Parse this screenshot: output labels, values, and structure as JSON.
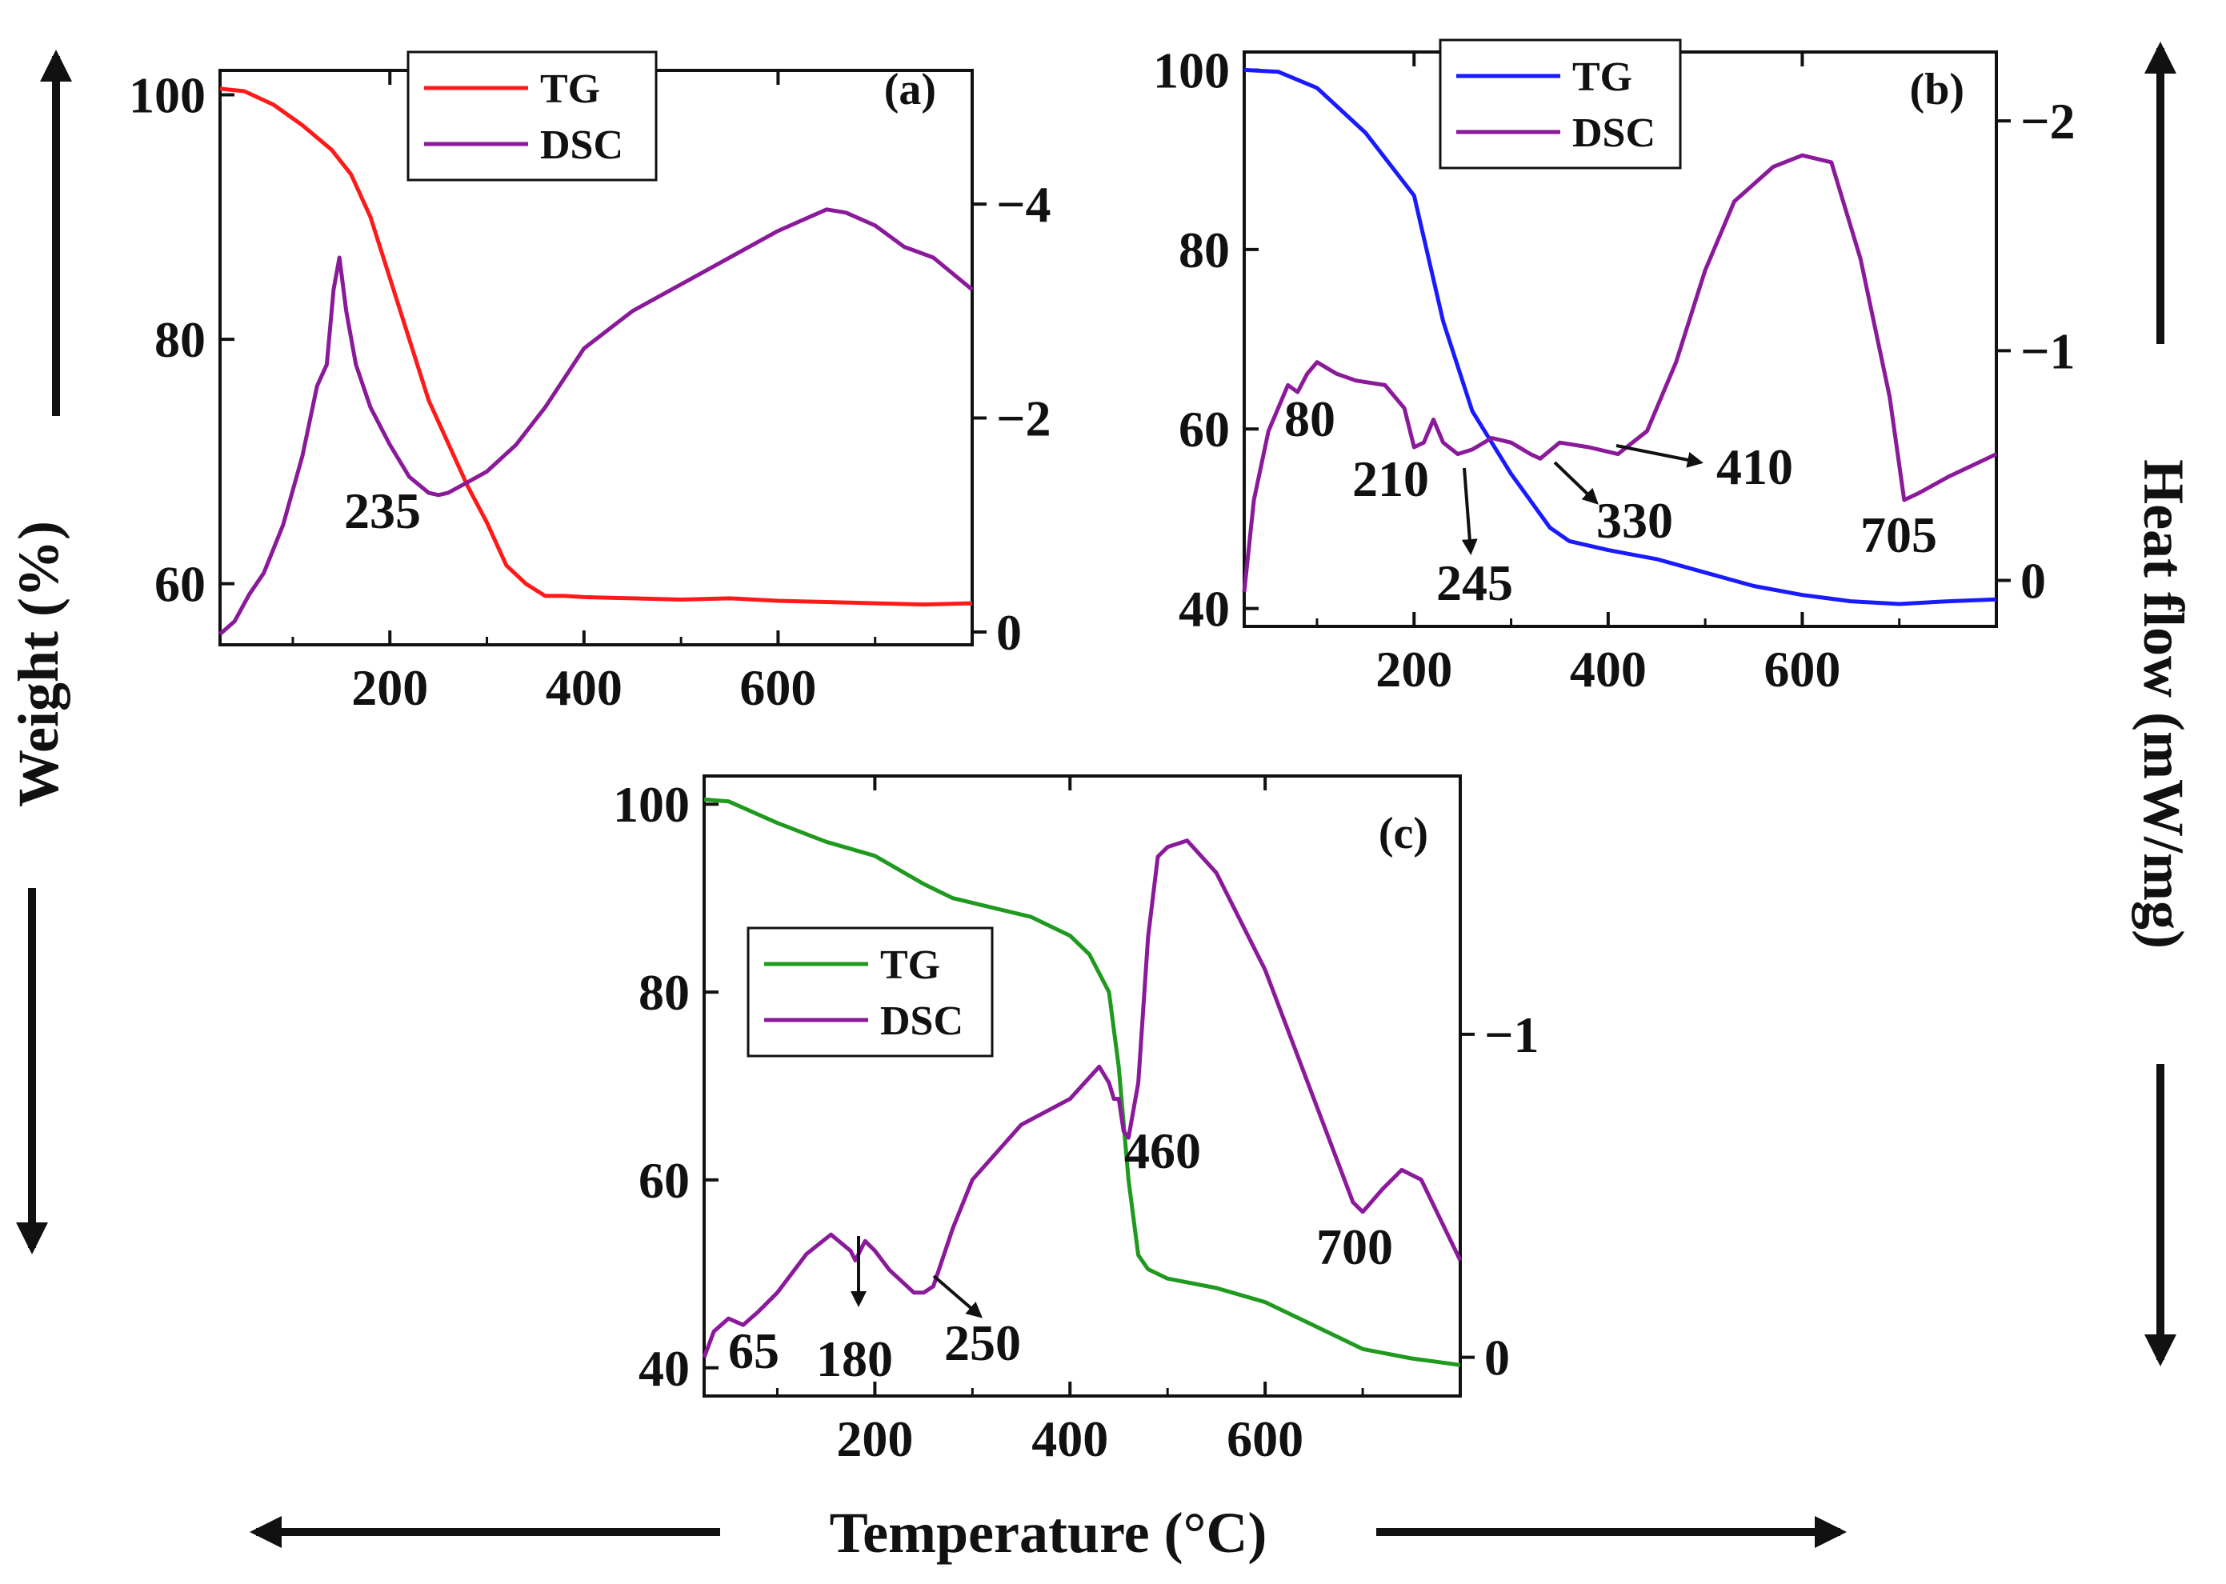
{
  "figure": {
    "ylabel_left": "Weight (%)",
    "ylabel_right": "Heat flow (mW/mg)",
    "xlabel": "Temperature (°C)"
  },
  "chart_data": [
    {
      "panel": "(a)",
      "type": "line",
      "xlim": [
        25,
        800
      ],
      "ylim_left": [
        55,
        102
      ],
      "ylim_right": [
        0.12,
        -5.25
      ],
      "xticks": [
        200,
        400,
        600
      ],
      "yticks_left": [
        60,
        80,
        100
      ],
      "yticks_right": [
        0,
        -2,
        -4
      ],
      "yticks_right_labels": [
        "0",
        "−2",
        "−4"
      ],
      "legend": [
        "TG",
        "DSC"
      ],
      "series": [
        {
          "name": "TG",
          "axis": "left",
          "color": "#ff1a1a",
          "x": [
            25,
            50,
            80,
            110,
            140,
            160,
            180,
            200,
            220,
            240,
            260,
            280,
            300,
            320,
            340,
            360,
            380,
            400,
            450,
            500,
            550,
            600,
            650,
            700,
            750,
            800
          ],
          "y": [
            100.5,
            100.3,
            99.2,
            97.5,
            95.5,
            93.5,
            90,
            85,
            80,
            75,
            71.5,
            68,
            65,
            61.5,
            60,
            59,
            59,
            58.9,
            58.8,
            58.7,
            58.8,
            58.6,
            58.5,
            58.4,
            58.3,
            58.4
          ]
        },
        {
          "name": "DSC",
          "axis": "right",
          "color": "#8b1a9b",
          "x": [
            25,
            40,
            55,
            70,
            90,
            110,
            125,
            135,
            142,
            148,
            155,
            165,
            180,
            200,
            220,
            240,
            250,
            260,
            280,
            300,
            330,
            360,
            400,
            450,
            500,
            550,
            600,
            650,
            670,
            700,
            730,
            760,
            800
          ],
          "y": [
            0.02,
            -0.1,
            -0.35,
            -0.55,
            -1.0,
            -1.65,
            -2.3,
            -2.5,
            -3.2,
            -3.5,
            -3.0,
            -2.5,
            -2.1,
            -1.75,
            -1.45,
            -1.3,
            -1.28,
            -1.3,
            -1.4,
            -1.5,
            -1.75,
            -2.1,
            -2.65,
            -3.0,
            -3.25,
            -3.5,
            -3.75,
            -3.95,
            -3.92,
            -3.8,
            -3.6,
            -3.5,
            -3.2
          ]
        }
      ],
      "annotations": [
        {
          "text": "235"
        }
      ]
    },
    {
      "panel": "(b)",
      "type": "line",
      "xlim": [
        25,
        800
      ],
      "ylim_left": [
        38,
        102
      ],
      "ylim_right": [
        0.2,
        -2.3
      ],
      "xticks": [
        200,
        400,
        600
      ],
      "yticks_left": [
        40,
        60,
        80,
        100
      ],
      "yticks_right": [
        0,
        -1,
        -2
      ],
      "yticks_right_labels": [
        "0",
        "−1",
        "−2"
      ],
      "legend": [
        "TG",
        "DSC"
      ],
      "series": [
        {
          "name": "TG",
          "axis": "left",
          "color": "#1a1aff",
          "x": [
            25,
            60,
            100,
            150,
            200,
            230,
            260,
            300,
            340,
            360,
            400,
            450,
            500,
            550,
            600,
            650,
            700,
            750,
            800
          ],
          "y": [
            100,
            99.8,
            98,
            93,
            86,
            72,
            62,
            55,
            49,
            47.5,
            46.5,
            45.5,
            44,
            42.5,
            41.5,
            40.8,
            40.5,
            40.8,
            41
          ]
        },
        {
          "name": "DSC",
          "axis": "right",
          "color": "#8b1a9b",
          "x": [
            25,
            35,
            50,
            70,
            80,
            90,
            100,
            120,
            140,
            170,
            190,
            200,
            210,
            220,
            230,
            245,
            260,
            280,
            300,
            320,
            330,
            350,
            380,
            410,
            440,
            470,
            500,
            530,
            570,
            600,
            630,
            660,
            690,
            705,
            720,
            750,
            800
          ],
          "y": [
            0.05,
            -0.35,
            -0.65,
            -0.85,
            -0.82,
            -0.9,
            -0.95,
            -0.9,
            -0.87,
            -0.85,
            -0.75,
            -0.58,
            -0.6,
            -0.7,
            -0.6,
            -0.55,
            -0.57,
            -0.62,
            -0.6,
            -0.55,
            -0.53,
            -0.6,
            -0.58,
            -0.55,
            -0.65,
            -0.95,
            -1.35,
            -1.65,
            -1.8,
            -1.85,
            -1.82,
            -1.4,
            -0.8,
            -0.35,
            -0.38,
            -0.45,
            -0.55
          ]
        }
      ],
      "annotations": [
        {
          "text": "80"
        },
        {
          "text": "210"
        },
        {
          "text": "245"
        },
        {
          "text": "330"
        },
        {
          "text": "410"
        },
        {
          "text": "705"
        }
      ]
    },
    {
      "panel": "(c)",
      "type": "line",
      "xlim": [
        25,
        800
      ],
      "ylim_left": [
        37,
        103
      ],
      "ylim_right": [
        0.12,
        -1.8
      ],
      "xticks": [
        200,
        400,
        600
      ],
      "yticks_left": [
        40,
        60,
        80,
        100
      ],
      "yticks_right": [
        0,
        -1
      ],
      "yticks_right_labels": [
        "0",
        "−1"
      ],
      "legend": [
        "TG",
        "DSC"
      ],
      "series": [
        {
          "name": "TG",
          "axis": "left",
          "color": "#1f9a1f",
          "x": [
            25,
            50,
            100,
            150,
            200,
            250,
            280,
            320,
            360,
            400,
            420,
            440,
            450,
            460,
            470,
            480,
            500,
            550,
            600,
            650,
            700,
            750,
            800
          ],
          "y": [
            100.5,
            100.3,
            98,
            96,
            94.5,
            91.5,
            90,
            89,
            88,
            86,
            84,
            80,
            72,
            60,
            52,
            50.5,
            49.5,
            48.5,
            47,
            44.5,
            42,
            41,
            40.3
          ]
        },
        {
          "name": "DSC",
          "axis": "right",
          "color": "#8b1a9b",
          "x": [
            25,
            35,
            50,
            65,
            80,
            100,
            130,
            155,
            175,
            180,
            190,
            200,
            215,
            240,
            250,
            260,
            280,
            300,
            350,
            400,
            430,
            440,
            445,
            450,
            455,
            460,
            470,
            480,
            490,
            500,
            520,
            550,
            600,
            650,
            690,
            700,
            720,
            740,
            760,
            800
          ],
          "y": [
            0,
            -0.08,
            -0.12,
            -0.1,
            -0.14,
            -0.2,
            -0.32,
            -0.38,
            -0.33,
            -0.3,
            -0.36,
            -0.33,
            -0.27,
            -0.2,
            -0.2,
            -0.22,
            -0.4,
            -0.55,
            -0.72,
            -0.8,
            -0.9,
            -0.85,
            -0.8,
            -0.8,
            -0.7,
            -0.68,
            -0.85,
            -1.3,
            -1.55,
            -1.58,
            -1.6,
            -1.5,
            -1.2,
            -0.8,
            -0.48,
            -0.45,
            -0.52,
            -0.58,
            -0.55,
            -0.3
          ]
        }
      ],
      "annotations": [
        {
          "text": "65"
        },
        {
          "text": "180"
        },
        {
          "text": "250"
        },
        {
          "text": "460"
        },
        {
          "text": "700"
        }
      ]
    }
  ]
}
